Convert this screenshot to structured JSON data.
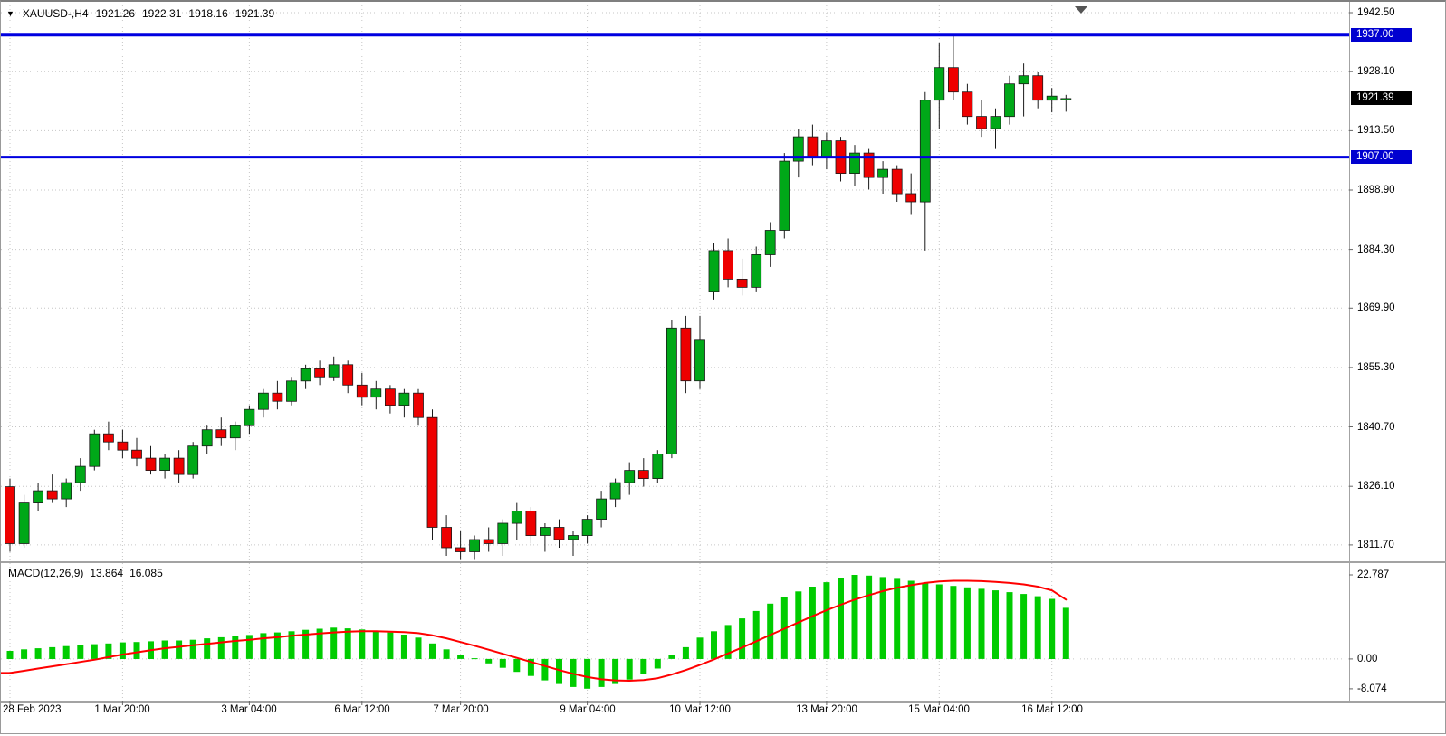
{
  "header": {
    "symbol_timeframe": "XAUUSD-,H4",
    "open": "1921.26",
    "high": "1922.31",
    "low": "1918.16",
    "close": "1921.39"
  },
  "price_axis": {
    "ticks": [
      "1942.50",
      "1928.10",
      "1913.50",
      "1898.90",
      "1884.30",
      "1869.90",
      "1855.30",
      "1840.70",
      "1826.10",
      "1811.70"
    ],
    "tags": [
      {
        "label": "1937.00",
        "value": 1937.0,
        "type": "hline"
      },
      {
        "label": "1921.39",
        "value": 1921.39,
        "type": "current"
      },
      {
        "label": "1907.00",
        "value": 1907.0,
        "type": "hline"
      }
    ]
  },
  "time_axis": {
    "labels": [
      {
        "text": "28 Feb 2023",
        "i": 0,
        "align": "left"
      },
      {
        "text": "1 Mar 20:00",
        "i": 8
      },
      {
        "text": "3 Mar 04:00",
        "i": 17
      },
      {
        "text": "6 Mar 12:00",
        "i": 25
      },
      {
        "text": "7 Mar 20:00",
        "i": 32
      },
      {
        "text": "9 Mar 04:00",
        "i": 41
      },
      {
        "text": "10 Mar 12:00",
        "i": 49
      },
      {
        "text": "13 Mar 20:00",
        "i": 58
      },
      {
        "text": "15 Mar 04:00",
        "i": 66
      },
      {
        "text": "16 Mar 12:00",
        "i": 74
      }
    ]
  },
  "macd_panel": {
    "name": "MACD(12,26,9)",
    "value_main": "13.864",
    "value_signal": "16.085",
    "axis_ticks": [
      {
        "text": "22.787",
        "v": 22.787
      },
      {
        "text": "0.00",
        "v": 0
      },
      {
        "text": "-8.074",
        "v": -8.074
      }
    ]
  },
  "colors": {
    "up": "#00a818",
    "down": "#ee0000",
    "wick": "#1a1a1a",
    "hline": "#0000e0",
    "hline_tag_bg": "#0000d0",
    "price_tag_bg": "#000000",
    "grid": "#c6c6c6",
    "macd_hist": "#00cc00",
    "macd_signal": "#ff0000"
  },
  "chart_data": {
    "type": "candlestick",
    "symbol": "XAUUSD-",
    "timeframe": "H4",
    "title": "XAUUSD-,H4 1921.26 1922.31 1918.16 1921.39",
    "ylim": [
      1809.0,
      1943.4
    ],
    "hlines": [
      1937.0,
      1907.0
    ],
    "current_price": 1921.39,
    "grid": true,
    "candles_ohlc": [
      [
        1826,
        1828,
        1810,
        1812
      ],
      [
        1812,
        1824,
        1811,
        1822
      ],
      [
        1822,
        1827,
        1820,
        1825
      ],
      [
        1825,
        1829,
        1822,
        1823
      ],
      [
        1823,
        1828,
        1821,
        1827
      ],
      [
        1827,
        1833,
        1825,
        1831
      ],
      [
        1831,
        1840,
        1830,
        1839
      ],
      [
        1839,
        1842,
        1835,
        1837
      ],
      [
        1837,
        1840,
        1833,
        1835
      ],
      [
        1835,
        1838,
        1831,
        1833
      ],
      [
        1833,
        1836,
        1829,
        1830
      ],
      [
        1830,
        1834,
        1828,
        1833
      ],
      [
        1833,
        1835,
        1827,
        1829
      ],
      [
        1829,
        1837,
        1828,
        1836
      ],
      [
        1836,
        1841,
        1834,
        1840
      ],
      [
        1840,
        1843,
        1836,
        1838
      ],
      [
        1838,
        1842,
        1835,
        1841
      ],
      [
        1841,
        1846,
        1839,
        1845
      ],
      [
        1845,
        1850,
        1843,
        1849
      ],
      [
        1849,
        1852,
        1845,
        1847
      ],
      [
        1847,
        1853,
        1846,
        1852
      ],
      [
        1852,
        1856,
        1850,
        1855
      ],
      [
        1855,
        1857,
        1851,
        1853
      ],
      [
        1853,
        1858,
        1852,
        1856
      ],
      [
        1856,
        1857,
        1849,
        1851
      ],
      [
        1851,
        1854,
        1846,
        1848
      ],
      [
        1848,
        1852,
        1845,
        1850
      ],
      [
        1850,
        1851,
        1844,
        1846
      ],
      [
        1846,
        1850,
        1843,
        1849
      ],
      [
        1849,
        1850,
        1841,
        1843
      ],
      [
        1843,
        1845,
        1813,
        1816
      ],
      [
        1816,
        1819,
        1809,
        1811
      ],
      [
        1811,
        1815,
        1808,
        1810
      ],
      [
        1810,
        1814,
        1808,
        1813
      ],
      [
        1813,
        1816,
        1810,
        1812
      ],
      [
        1812,
        1818,
        1809,
        1817
      ],
      [
        1817,
        1822,
        1813,
        1820
      ],
      [
        1820,
        1821,
        1812,
        1814
      ],
      [
        1814,
        1817,
        1810,
        1816
      ],
      [
        1816,
        1818,
        1811,
        1813
      ],
      [
        1813,
        1815,
        1809,
        1814
      ],
      [
        1814,
        1819,
        1812,
        1818
      ],
      [
        1818,
        1825,
        1816,
        1823
      ],
      [
        1823,
        1828,
        1821,
        1827
      ],
      [
        1827,
        1832,
        1824,
        1830
      ],
      [
        1830,
        1833,
        1826,
        1828
      ],
      [
        1828,
        1835,
        1827,
        1834
      ],
      [
        1834,
        1867,
        1833,
        1865
      ],
      [
        1865,
        1868,
        1849,
        1852
      ],
      [
        1852,
        1868,
        1850,
        1862
      ],
      [
        1874,
        1886,
        1872,
        1884
      ],
      [
        1884,
        1887,
        1875,
        1877
      ],
      [
        1877,
        1882,
        1873,
        1875
      ],
      [
        1875,
        1885,
        1874,
        1883
      ],
      [
        1883,
        1891,
        1880,
        1889
      ],
      [
        1889,
        1908,
        1887,
        1906
      ],
      [
        1906,
        1914,
        1902,
        1912
      ],
      [
        1912,
        1915,
        1905,
        1907
      ],
      [
        1907,
        1913,
        1904,
        1911
      ],
      [
        1911,
        1912,
        1901,
        1903
      ],
      [
        1903,
        1910,
        1900,
        1908
      ],
      [
        1908,
        1909,
        1899,
        1902
      ],
      [
        1902,
        1906,
        1898,
        1904
      ],
      [
        1904,
        1905,
        1896,
        1898
      ],
      [
        1898,
        1903,
        1893,
        1896
      ],
      [
        1896,
        1923,
        1884,
        1921
      ],
      [
        1921,
        1935,
        1914,
        1929
      ],
      [
        1929,
        1937,
        1921,
        1923
      ],
      [
        1923,
        1925,
        1915,
        1917
      ],
      [
        1917,
        1921,
        1912,
        1914
      ],
      [
        1914,
        1919,
        1909,
        1917
      ],
      [
        1917,
        1927,
        1915,
        1925
      ],
      [
        1925,
        1930,
        1917,
        1927
      ],
      [
        1927,
        1928,
        1919,
        1921
      ],
      [
        1921,
        1924,
        1918,
        1922
      ],
      [
        1921.26,
        1922.31,
        1918.16,
        1921.39
      ]
    ],
    "indicator": {
      "type": "MACD",
      "params": "12,26,9",
      "ylim": [
        -10.8,
        24.5
      ],
      "histogram": [
        2.2,
        2.6,
        2.9,
        3.2,
        3.5,
        3.8,
        4.0,
        4.2,
        4.5,
        4.6,
        4.8,
        5.0,
        5.0,
        5.2,
        5.6,
        5.9,
        6.2,
        6.5,
        7.0,
        7.2,
        7.5,
        7.9,
        8.2,
        8.5,
        8.3,
        8.0,
        7.6,
        7.2,
        6.6,
        5.8,
        4.2,
        2.6,
        1.2,
        0.2,
        -1.2,
        -2.4,
        -3.5,
        -4.6,
        -5.8,
        -6.8,
        -7.6,
        -8.074,
        -7.6,
        -6.8,
        -5.6,
        -4.2,
        -2.6,
        1.2,
        3.2,
        5.8,
        7.5,
        9.2,
        11.0,
        13.0,
        15.0,
        16.8,
        18.3,
        19.6,
        20.8,
        21.9,
        22.787,
        22.6,
        22.2,
        21.7,
        21.2,
        20.7,
        20.2,
        19.8,
        19.4,
        19.0,
        18.6,
        18.1,
        17.6,
        17.0,
        16.3,
        13.864
      ],
      "signal": [
        -3.8,
        -3.2,
        -2.6,
        -2.0,
        -1.4,
        -0.8,
        -0.2,
        0.5,
        1.2,
        1.8,
        2.4,
        2.9,
        3.3,
        3.7,
        4.1,
        4.5,
        4.9,
        5.2,
        5.6,
        5.9,
        6.3,
        6.6,
        6.9,
        7.2,
        7.4,
        7.5,
        7.5,
        7.4,
        7.3,
        7.0,
        6.4,
        5.6,
        4.6,
        3.6,
        2.5,
        1.4,
        0.3,
        -0.8,
        -1.9,
        -3.0,
        -4.0,
        -4.9,
        -5.5,
        -5.8,
        -5.9,
        -5.7,
        -5.2,
        -4.2,
        -3.0,
        -1.6,
        -0.1,
        1.5,
        3.1,
        4.8,
        6.5,
        8.2,
        9.9,
        11.6,
        13.2,
        14.7,
        16.1,
        17.3,
        18.4,
        19.3,
        20.0,
        20.6,
        21.0,
        21.2,
        21.2,
        21.1,
        20.9,
        20.6,
        20.2,
        19.6,
        18.6,
        16.085
      ]
    }
  }
}
